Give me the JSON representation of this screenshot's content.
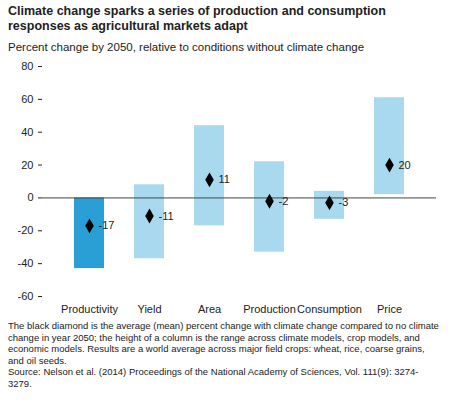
{
  "chart_data": {
    "type": "bar",
    "title": "Climate change sparks a series of production and consumption responses as agricultural markets adapt",
    "subtitle": "Percent change by 2050, relative to conditions without climate change",
    "caption": [
      "The black diamond is the average (mean) percent change with climate change compared to no climate change in year 2050; the height of a column is the range across climate models, crop models, and economic models. Results are a world average across major field crops: wheat, rice, coarse grains, and oil seeds.",
      "Source: Nelson et al. (2014) Proceedings of the National Academy of Sciences, Vol. 111(9): 3274-3279."
    ],
    "categories": [
      "Productivity",
      "Yield",
      "Area",
      "Production",
      "Consumption",
      "Price"
    ],
    "values": [
      -17,
      -11,
      11,
      -2,
      -3,
      20
    ],
    "low": [
      -43,
      -37,
      -17,
      -33,
      -13,
      2
    ],
    "high": [
      0,
      8,
      44,
      22,
      4,
      61
    ],
    "colors": [
      "#2a9fd6",
      "#a9d9ef",
      "#a9d9ef",
      "#a9d9ef",
      "#a9d9ef",
      "#a9d9ef"
    ],
    "marker": "diamond",
    "data_labels": true,
    "ylim": [
      -60,
      80
    ],
    "yticks": [
      -60,
      -40,
      -20,
      0,
      20,
      40,
      60,
      80
    ],
    "grid": false
  }
}
